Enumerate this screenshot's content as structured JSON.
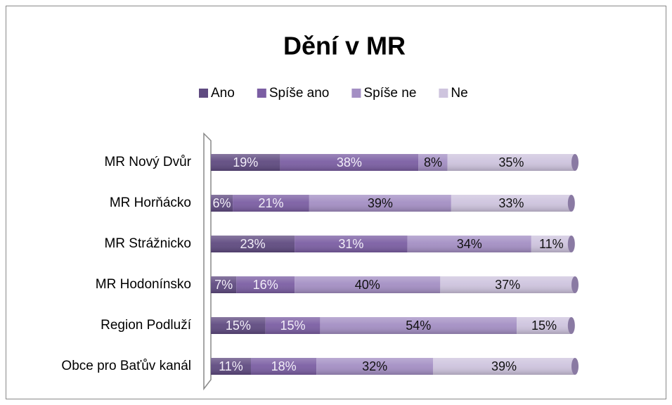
{
  "chart_data": {
    "type": "stacked-bar-horizontal",
    "title": "Dění v MR",
    "categories": [
      "MR Nový Dvůr",
      "MR Horňácko",
      "MR Strážnicko",
      "MR Hodonínsko",
      "Region Podluží",
      "Obce pro Baťův kanál"
    ],
    "series": [
      {
        "name": "Ano",
        "color": "#5f4a80",
        "values": [
          19,
          6,
          23,
          7,
          15,
          11
        ],
        "value_labels": [
          "19%",
          "6%",
          "23%",
          "7%",
          "15%",
          "11%"
        ]
      },
      {
        "name": "Spíše ano",
        "color": "#7b5ea3",
        "values": [
          38,
          21,
          31,
          16,
          15,
          18
        ],
        "value_labels": [
          "38%",
          "21%",
          "31%",
          "16%",
          "15%",
          "18%"
        ]
      },
      {
        "name": "Spíše ne",
        "color": "#a48fc4",
        "values": [
          8,
          39,
          34,
          40,
          54,
          32
        ],
        "value_labels": [
          "8%",
          "39%",
          "34%",
          "40%",
          "54%",
          "32%"
        ]
      },
      {
        "name": "Ne",
        "color": "#cec4de",
        "values": [
          35,
          33,
          11,
          37,
          15,
          39
        ],
        "value_labels": [
          "35%",
          "33%",
          "11%",
          "37%",
          "15%",
          "39%"
        ]
      }
    ],
    "xlim": [
      0,
      100
    ],
    "legend": "top"
  }
}
